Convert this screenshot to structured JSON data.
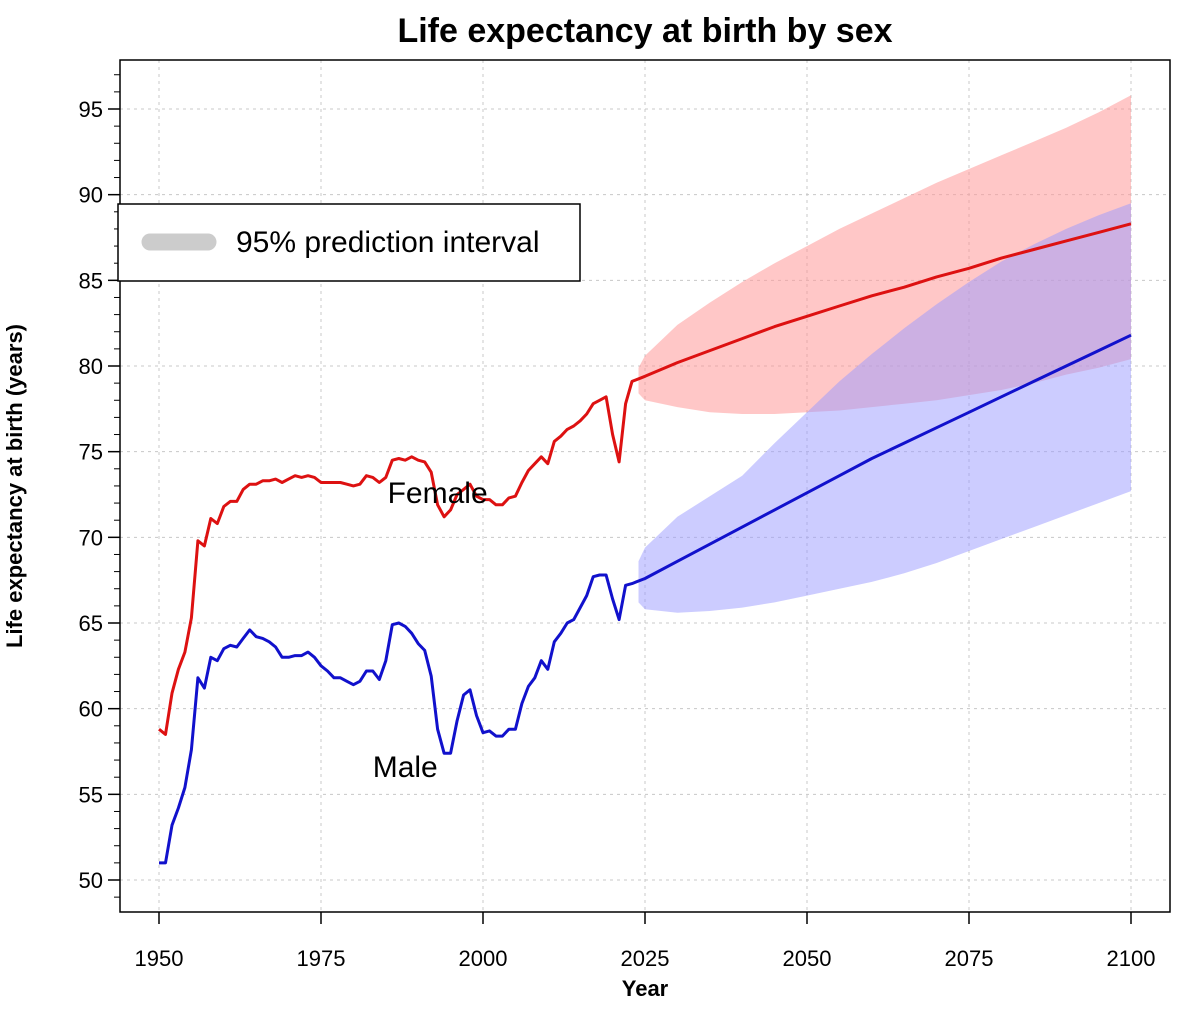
{
  "chart_data": {
    "type": "line",
    "title": "Life expectancy at birth by sex",
    "xlabel": "Year",
    "ylabel": "Life expectancy at birth (years)",
    "xlim": [
      1944,
      2106
    ],
    "ylim": [
      48,
      98
    ],
    "x_ticks": [
      1950,
      1975,
      2000,
      2025,
      2050,
      2075,
      2100
    ],
    "y_ticks": [
      50,
      55,
      60,
      65,
      70,
      75,
      80,
      85,
      90,
      95
    ],
    "grid": true,
    "legend": {
      "placement": "top-left",
      "entries": [
        "95% prediction interval"
      ],
      "color": "#cccccc"
    },
    "series": [
      {
        "name": "Female",
        "color": "#dd1111",
        "label_at": [
          1993,
          72.0
        ],
        "observed": [
          [
            1950,
            58.8
          ],
          [
            1951,
            58.5
          ],
          [
            1952,
            60.9
          ],
          [
            1953,
            62.3
          ],
          [
            1954,
            63.3
          ],
          [
            1955,
            65.3
          ],
          [
            1956,
            69.8
          ],
          [
            1957,
            69.5
          ],
          [
            1958,
            71.1
          ],
          [
            1959,
            70.8
          ],
          [
            1960,
            71.8
          ],
          [
            1961,
            72.1
          ],
          [
            1962,
            72.1
          ],
          [
            1963,
            72.8
          ],
          [
            1964,
            73.1
          ],
          [
            1965,
            73.1
          ],
          [
            1966,
            73.3
          ],
          [
            1967,
            73.3
          ],
          [
            1968,
            73.4
          ],
          [
            1969,
            73.2
          ],
          [
            1970,
            73.4
          ],
          [
            1971,
            73.6
          ],
          [
            1972,
            73.5
          ],
          [
            1973,
            73.6
          ],
          [
            1974,
            73.5
          ],
          [
            1975,
            73.2
          ],
          [
            1976,
            73.2
          ],
          [
            1977,
            73.2
          ],
          [
            1978,
            73.2
          ],
          [
            1979,
            73.1
          ],
          [
            1980,
            73.0
          ],
          [
            1981,
            73.1
          ],
          [
            1982,
            73.6
          ],
          [
            1983,
            73.5
          ],
          [
            1984,
            73.2
          ],
          [
            1985,
            73.5
          ],
          [
            1986,
            74.5
          ],
          [
            1987,
            74.6
          ],
          [
            1988,
            74.5
          ],
          [
            1989,
            74.7
          ],
          [
            1990,
            74.5
          ],
          [
            1991,
            74.4
          ],
          [
            1992,
            73.8
          ],
          [
            1993,
            71.9
          ],
          [
            1994,
            71.2
          ],
          [
            1995,
            71.6
          ],
          [
            1996,
            72.5
          ],
          [
            1997,
            72.8
          ],
          [
            1998,
            73.1
          ],
          [
            1999,
            72.4
          ],
          [
            2000,
            72.2
          ],
          [
            2001,
            72.2
          ],
          [
            2002,
            71.9
          ],
          [
            2003,
            71.9
          ],
          [
            2004,
            72.3
          ],
          [
            2005,
            72.4
          ],
          [
            2006,
            73.2
          ],
          [
            2007,
            73.9
          ],
          [
            2008,
            74.3
          ],
          [
            2009,
            74.7
          ],
          [
            2010,
            74.3
          ],
          [
            2011,
            75.6
          ],
          [
            2012,
            75.9
          ],
          [
            2013,
            76.3
          ],
          [
            2014,
            76.5
          ],
          [
            2015,
            76.8
          ],
          [
            2016,
            77.2
          ],
          [
            2017,
            77.8
          ],
          [
            2018,
            78.0
          ],
          [
            2019,
            78.2
          ],
          [
            2020,
            76.0
          ],
          [
            2021,
            74.4
          ],
          [
            2022,
            77.8
          ],
          [
            2023,
            79.1
          ]
        ],
        "projection": [
          [
            2023,
            79.1
          ],
          [
            2025,
            79.4
          ],
          [
            2030,
            80.2
          ],
          [
            2035,
            80.9
          ],
          [
            2040,
            81.6
          ],
          [
            2045,
            82.3
          ],
          [
            2050,
            82.9
          ],
          [
            2055,
            83.5
          ],
          [
            2060,
            84.1
          ],
          [
            2065,
            84.6
          ],
          [
            2070,
            85.2
          ],
          [
            2075,
            85.7
          ],
          [
            2080,
            86.3
          ],
          [
            2085,
            86.8
          ],
          [
            2090,
            87.3
          ],
          [
            2095,
            87.8
          ],
          [
            2100,
            88.3
          ]
        ],
        "interval": {
          "color": "#ff9999",
          "opacity": 0.55,
          "x": [
            2024,
            2025,
            2030,
            2035,
            2040,
            2045,
            2050,
            2055,
            2060,
            2065,
            2070,
            2075,
            2080,
            2085,
            2090,
            2095,
            2100
          ],
          "upper": [
            79.9,
            80.6,
            82.4,
            83.7,
            84.9,
            86.0,
            87.0,
            88.0,
            88.9,
            89.8,
            90.7,
            91.5,
            92.3,
            93.1,
            93.9,
            94.8,
            95.8
          ],
          "lower": [
            78.4,
            78.0,
            77.6,
            77.3,
            77.2,
            77.2,
            77.3,
            77.4,
            77.6,
            77.8,
            78.0,
            78.3,
            78.6,
            79.0,
            79.5,
            79.9,
            80.4
          ]
        }
      },
      {
        "name": "Male",
        "color": "#1111cc",
        "label_at": [
          1988,
          56.0
        ],
        "observed": [
          [
            1950,
            51.0
          ],
          [
            1951,
            51.0
          ],
          [
            1952,
            53.2
          ],
          [
            1953,
            54.2
          ],
          [
            1954,
            55.4
          ],
          [
            1955,
            57.6
          ],
          [
            1956,
            61.8
          ],
          [
            1957,
            61.2
          ],
          [
            1958,
            63.0
          ],
          [
            1959,
            62.8
          ],
          [
            1960,
            63.5
          ],
          [
            1961,
            63.7
          ],
          [
            1962,
            63.6
          ],
          [
            1963,
            64.1
          ],
          [
            1964,
            64.6
          ],
          [
            1965,
            64.2
          ],
          [
            1966,
            64.1
          ],
          [
            1967,
            63.9
          ],
          [
            1968,
            63.6
          ],
          [
            1969,
            63.0
          ],
          [
            1970,
            63.0
          ],
          [
            1971,
            63.1
          ],
          [
            1972,
            63.1
          ],
          [
            1973,
            63.3
          ],
          [
            1974,
            63.0
          ],
          [
            1975,
            62.5
          ],
          [
            1976,
            62.2
          ],
          [
            1977,
            61.8
          ],
          [
            1978,
            61.8
          ],
          [
            1979,
            61.6
          ],
          [
            1980,
            61.4
          ],
          [
            1981,
            61.6
          ],
          [
            1982,
            62.2
          ],
          [
            1983,
            62.2
          ],
          [
            1984,
            61.7
          ],
          [
            1985,
            62.8
          ],
          [
            1986,
            64.9
          ],
          [
            1987,
            65.0
          ],
          [
            1988,
            64.8
          ],
          [
            1989,
            64.4
          ],
          [
            1990,
            63.8
          ],
          [
            1991,
            63.4
          ],
          [
            1992,
            61.9
          ],
          [
            1993,
            58.8
          ],
          [
            1994,
            57.4
          ],
          [
            1995,
            57.4
          ],
          [
            1996,
            59.3
          ],
          [
            1997,
            60.8
          ],
          [
            1998,
            61.1
          ],
          [
            1999,
            59.6
          ],
          [
            2000,
            58.6
          ],
          [
            2001,
            58.7
          ],
          [
            2002,
            58.4
          ],
          [
            2003,
            58.4
          ],
          [
            2004,
            58.8
          ],
          [
            2005,
            58.8
          ],
          [
            2006,
            60.3
          ],
          [
            2007,
            61.3
          ],
          [
            2008,
            61.8
          ],
          [
            2009,
            62.8
          ],
          [
            2010,
            62.3
          ],
          [
            2011,
            63.9
          ],
          [
            2012,
            64.4
          ],
          [
            2013,
            65.0
          ],
          [
            2014,
            65.2
          ],
          [
            2015,
            65.9
          ],
          [
            2016,
            66.6
          ],
          [
            2017,
            67.7
          ],
          [
            2018,
            67.8
          ],
          [
            2019,
            67.8
          ],
          [
            2020,
            66.4
          ],
          [
            2021,
            65.2
          ],
          [
            2022,
            67.2
          ],
          [
            2023,
            67.3
          ]
        ],
        "projection": [
          [
            2023,
            67.3
          ],
          [
            2025,
            67.6
          ],
          [
            2030,
            68.6
          ],
          [
            2035,
            69.6
          ],
          [
            2040,
            70.6
          ],
          [
            2045,
            71.6
          ],
          [
            2050,
            72.6
          ],
          [
            2055,
            73.6
          ],
          [
            2060,
            74.6
          ],
          [
            2065,
            75.5
          ],
          [
            2070,
            76.4
          ],
          [
            2075,
            77.3
          ],
          [
            2080,
            78.2
          ],
          [
            2085,
            79.1
          ],
          [
            2090,
            80.0
          ],
          [
            2095,
            80.9
          ],
          [
            2100,
            81.8
          ]
        ],
        "interval": {
          "color": "#9999ff",
          "opacity": 0.5,
          "x": [
            2024,
            2025,
            2030,
            2035,
            2040,
            2045,
            2050,
            2055,
            2060,
            2065,
            2070,
            2075,
            2080,
            2085,
            2090,
            2095,
            2100
          ],
          "upper": [
            68.6,
            69.4,
            71.2,
            72.4,
            73.6,
            75.5,
            77.3,
            79.1,
            80.7,
            82.2,
            83.6,
            84.9,
            86.1,
            87.1,
            88.0,
            88.8,
            89.5
          ],
          "lower": [
            66.2,
            65.8,
            65.6,
            65.7,
            65.9,
            66.2,
            66.6,
            67.0,
            67.4,
            67.9,
            68.5,
            69.2,
            69.9,
            70.6,
            71.3,
            72.0,
            72.7
          ]
        }
      }
    ]
  }
}
